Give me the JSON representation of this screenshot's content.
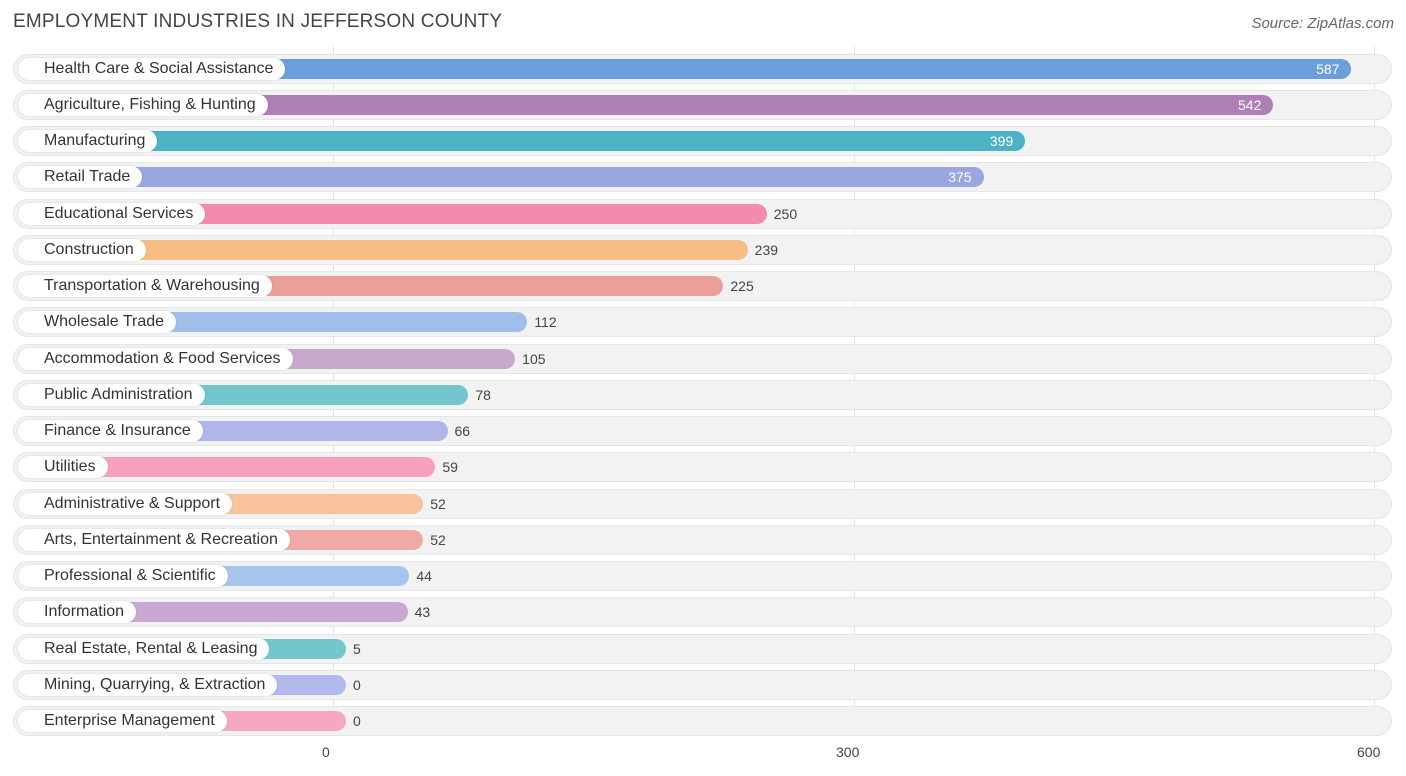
{
  "chart_data": {
    "type": "bar",
    "orientation": "horizontal",
    "title": "EMPLOYMENT INDUSTRIES IN JEFFERSON COUNTY",
    "source": "Source: ZipAtlas.com",
    "xlim": [
      0,
      600
    ],
    "ticks": [
      0,
      300,
      600
    ],
    "tick_labels": [
      "0",
      "300",
      "600"
    ],
    "categories": [
      "Health Care & Social Assistance",
      "Agriculture, Fishing & Hunting",
      "Manufacturing",
      "Retail Trade",
      "Educational Services",
      "Construction",
      "Transportation & Warehousing",
      "Wholesale Trade",
      "Accommodation & Food Services",
      "Public Administration",
      "Finance & Insurance",
      "Utilities",
      "Administrative & Support",
      "Arts, Entertainment & Recreation",
      "Professional & Scientific",
      "Information",
      "Real Estate, Rental & Leasing",
      "Mining, Quarrying, & Extraction",
      "Enterprise Management"
    ],
    "values": [
      587,
      542,
      399,
      375,
      250,
      239,
      225,
      112,
      105,
      78,
      66,
      59,
      52,
      52,
      44,
      43,
      5,
      0,
      0
    ],
    "value_labels": [
      "587",
      "542",
      "399",
      "375",
      "250",
      "239",
      "225",
      "112",
      "105",
      "78",
      "66",
      "59",
      "52",
      "52",
      "44",
      "43",
      "5",
      "0",
      "0"
    ],
    "colors": [
      "#6a9fdc",
      "#b07fb8",
      "#4db3c4",
      "#9aa6e0",
      "#f48aaf",
      "#f8bd84",
      "#ec9e9a",
      "#9fbfea",
      "#c8a8cc",
      "#72c6cc",
      "#afb6ea",
      "#f6a0bc",
      "#f8c39a",
      "#efaaa8",
      "#a6c4ec",
      "#c8a8d2",
      "#72c6cc",
      "#b2baec",
      "#f6a8c2"
    ]
  }
}
